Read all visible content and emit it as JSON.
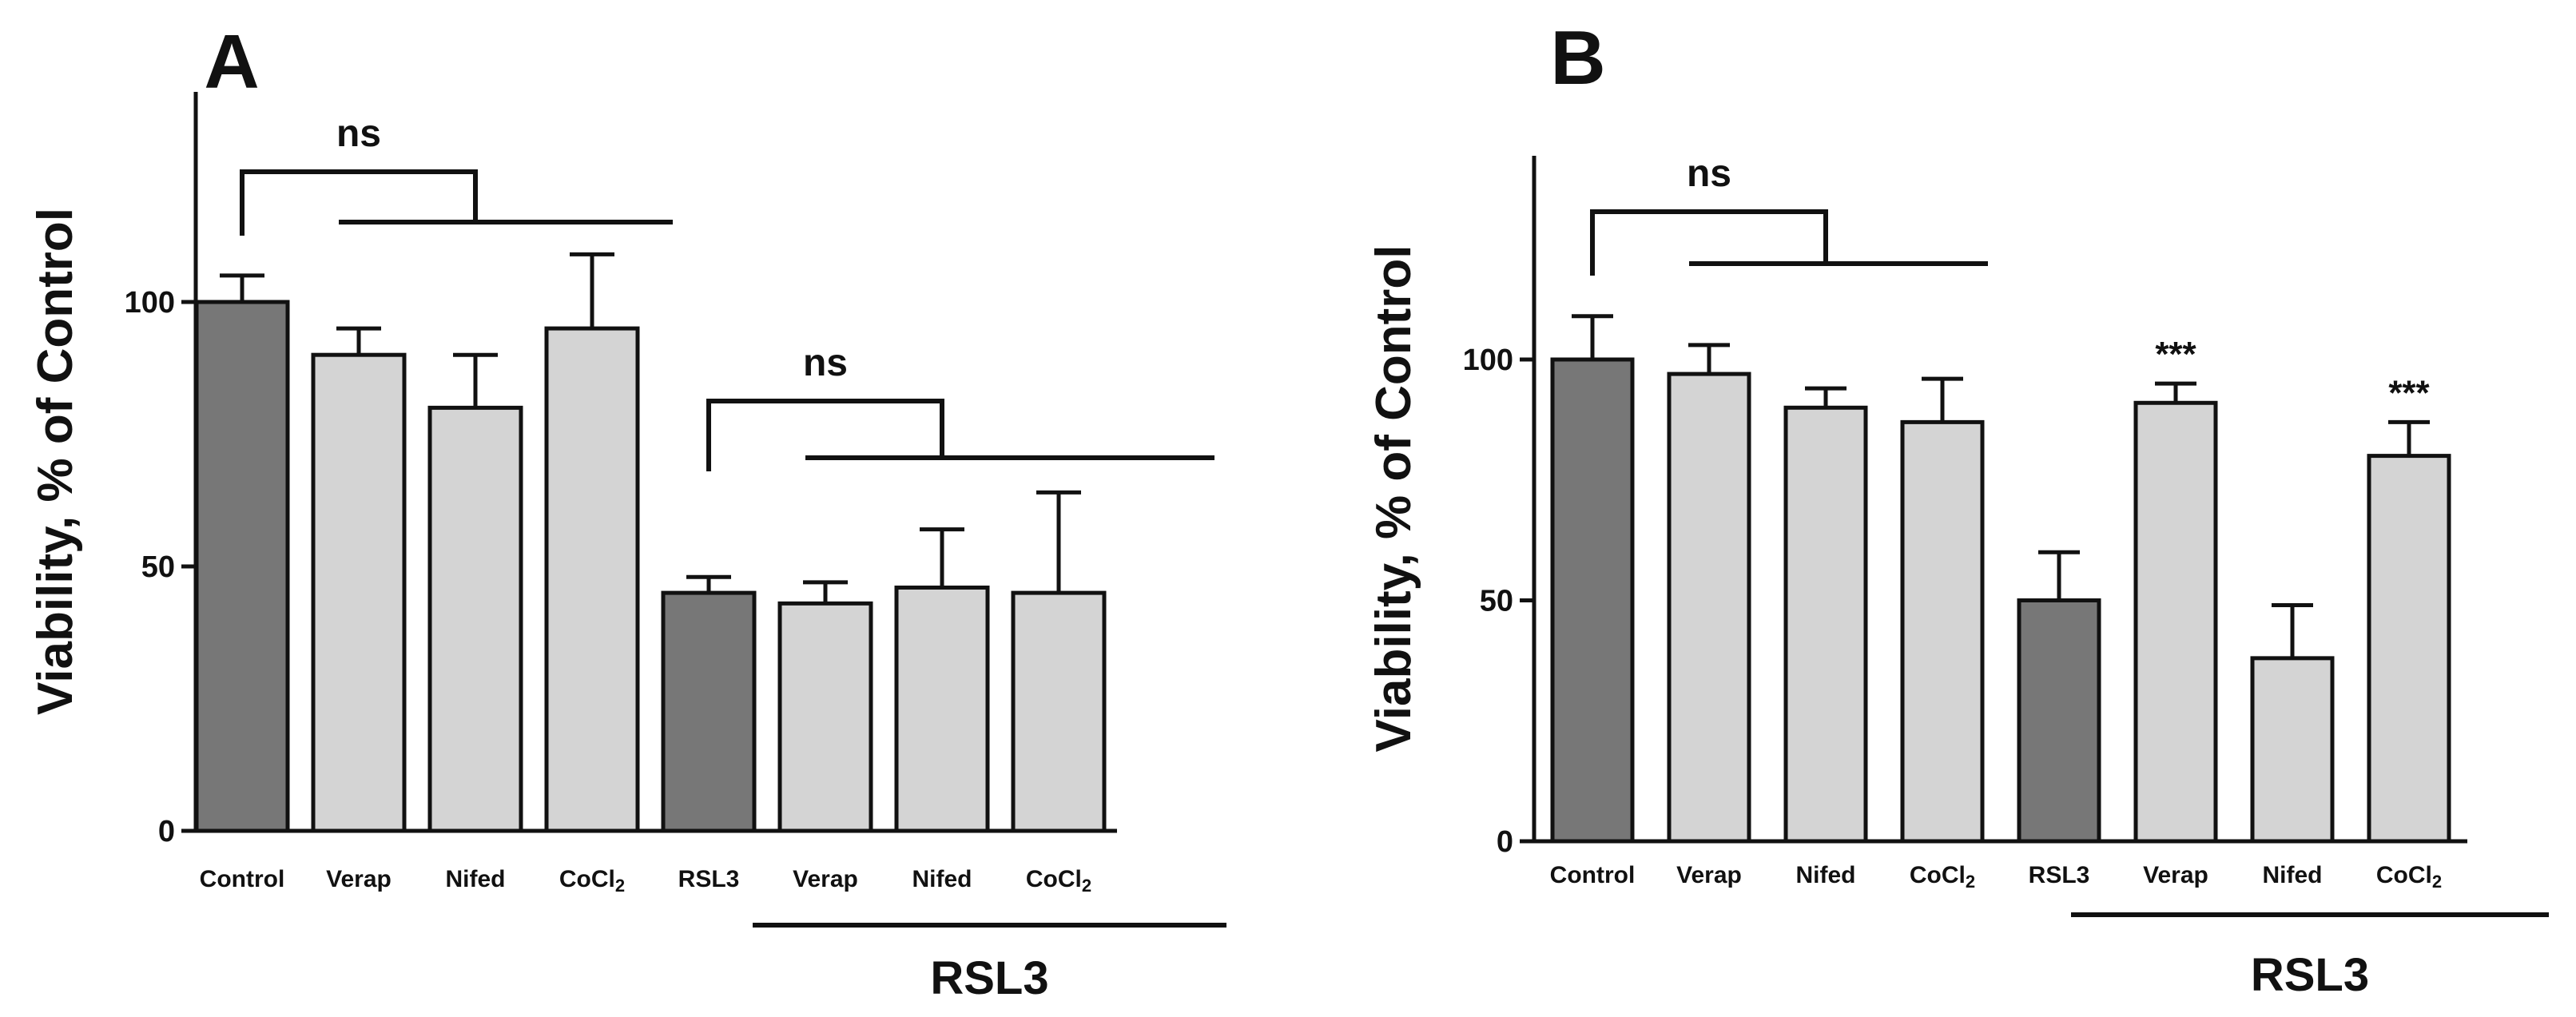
{
  "chart_data": [
    {
      "type": "bar",
      "panel": "A",
      "ylabel": "Viability, % of Control",
      "ylim": [
        0,
        140
      ],
      "yticks": [
        0,
        50,
        100
      ],
      "categories": [
        "Control",
        "Verap",
        "Nifed",
        "CoCl2",
        "RSL3",
        "Verap",
        "Nifed",
        "CoCl2"
      ],
      "category_labels": [
        {
          "main": "Control",
          "sub": ""
        },
        {
          "main": "Verap",
          "sub": ""
        },
        {
          "main": "Nifed",
          "sub": ""
        },
        {
          "main": "CoCl",
          "sub": "2"
        },
        {
          "main": "RSL3",
          "sub": ""
        },
        {
          "main": "Verap",
          "sub": ""
        },
        {
          "main": "Nifed",
          "sub": ""
        },
        {
          "main": "CoCl",
          "sub": "2"
        }
      ],
      "values": [
        100,
        90,
        80,
        95,
        45,
        43,
        46,
        45
      ],
      "errors": [
        5,
        5,
        10,
        14,
        3,
        4,
        11,
        19
      ],
      "bar_colors": [
        "#777777",
        "#d4d4d4",
        "#d4d4d4",
        "#d4d4d4",
        "#777777",
        "#d4d4d4",
        "#d4d4d4",
        "#d4d4d4"
      ],
      "annotations": [
        {
          "text": "ns",
          "ref": 0,
          "group": [
            1,
            3
          ]
        },
        {
          "text": "ns",
          "ref": 4,
          "group": [
            5,
            7
          ]
        }
      ],
      "significance": [
        "",
        "",
        "",
        "",
        "",
        "",
        "",
        ""
      ],
      "group_label": {
        "text": "RSL3",
        "span": [
          4,
          7
        ]
      }
    },
    {
      "type": "bar",
      "panel": "B",
      "ylabel": "Viability, % of Control",
      "ylim": [
        0,
        140
      ],
      "yticks": [
        0,
        50,
        100
      ],
      "categories": [
        "Control",
        "Verap",
        "Nifed",
        "CoCl2",
        "RSL3",
        "Verap",
        "Nifed",
        "CoCl2"
      ],
      "category_labels": [
        {
          "main": "Control",
          "sub": ""
        },
        {
          "main": "Verap",
          "sub": ""
        },
        {
          "main": "Nifed",
          "sub": ""
        },
        {
          "main": "CoCl",
          "sub": "2"
        },
        {
          "main": "RSL3",
          "sub": ""
        },
        {
          "main": "Verap",
          "sub": ""
        },
        {
          "main": "Nifed",
          "sub": ""
        },
        {
          "main": "CoCl",
          "sub": "2"
        }
      ],
      "values": [
        100,
        97,
        90,
        87,
        50,
        91,
        38,
        80
      ],
      "errors": [
        9,
        6,
        4,
        9,
        10,
        4,
        11,
        7
      ],
      "bar_colors": [
        "#777777",
        "#d4d4d4",
        "#d4d4d4",
        "#d4d4d4",
        "#777777",
        "#d4d4d4",
        "#d4d4d4",
        "#d4d4d4"
      ],
      "annotations": [
        {
          "text": "ns",
          "ref": 0,
          "group": [
            1,
            3
          ]
        }
      ],
      "significance": [
        "",
        "",
        "",
        "",
        "",
        "***",
        "",
        "***"
      ],
      "group_label": {
        "text": "RSL3",
        "span": [
          4,
          7
        ]
      }
    }
  ]
}
